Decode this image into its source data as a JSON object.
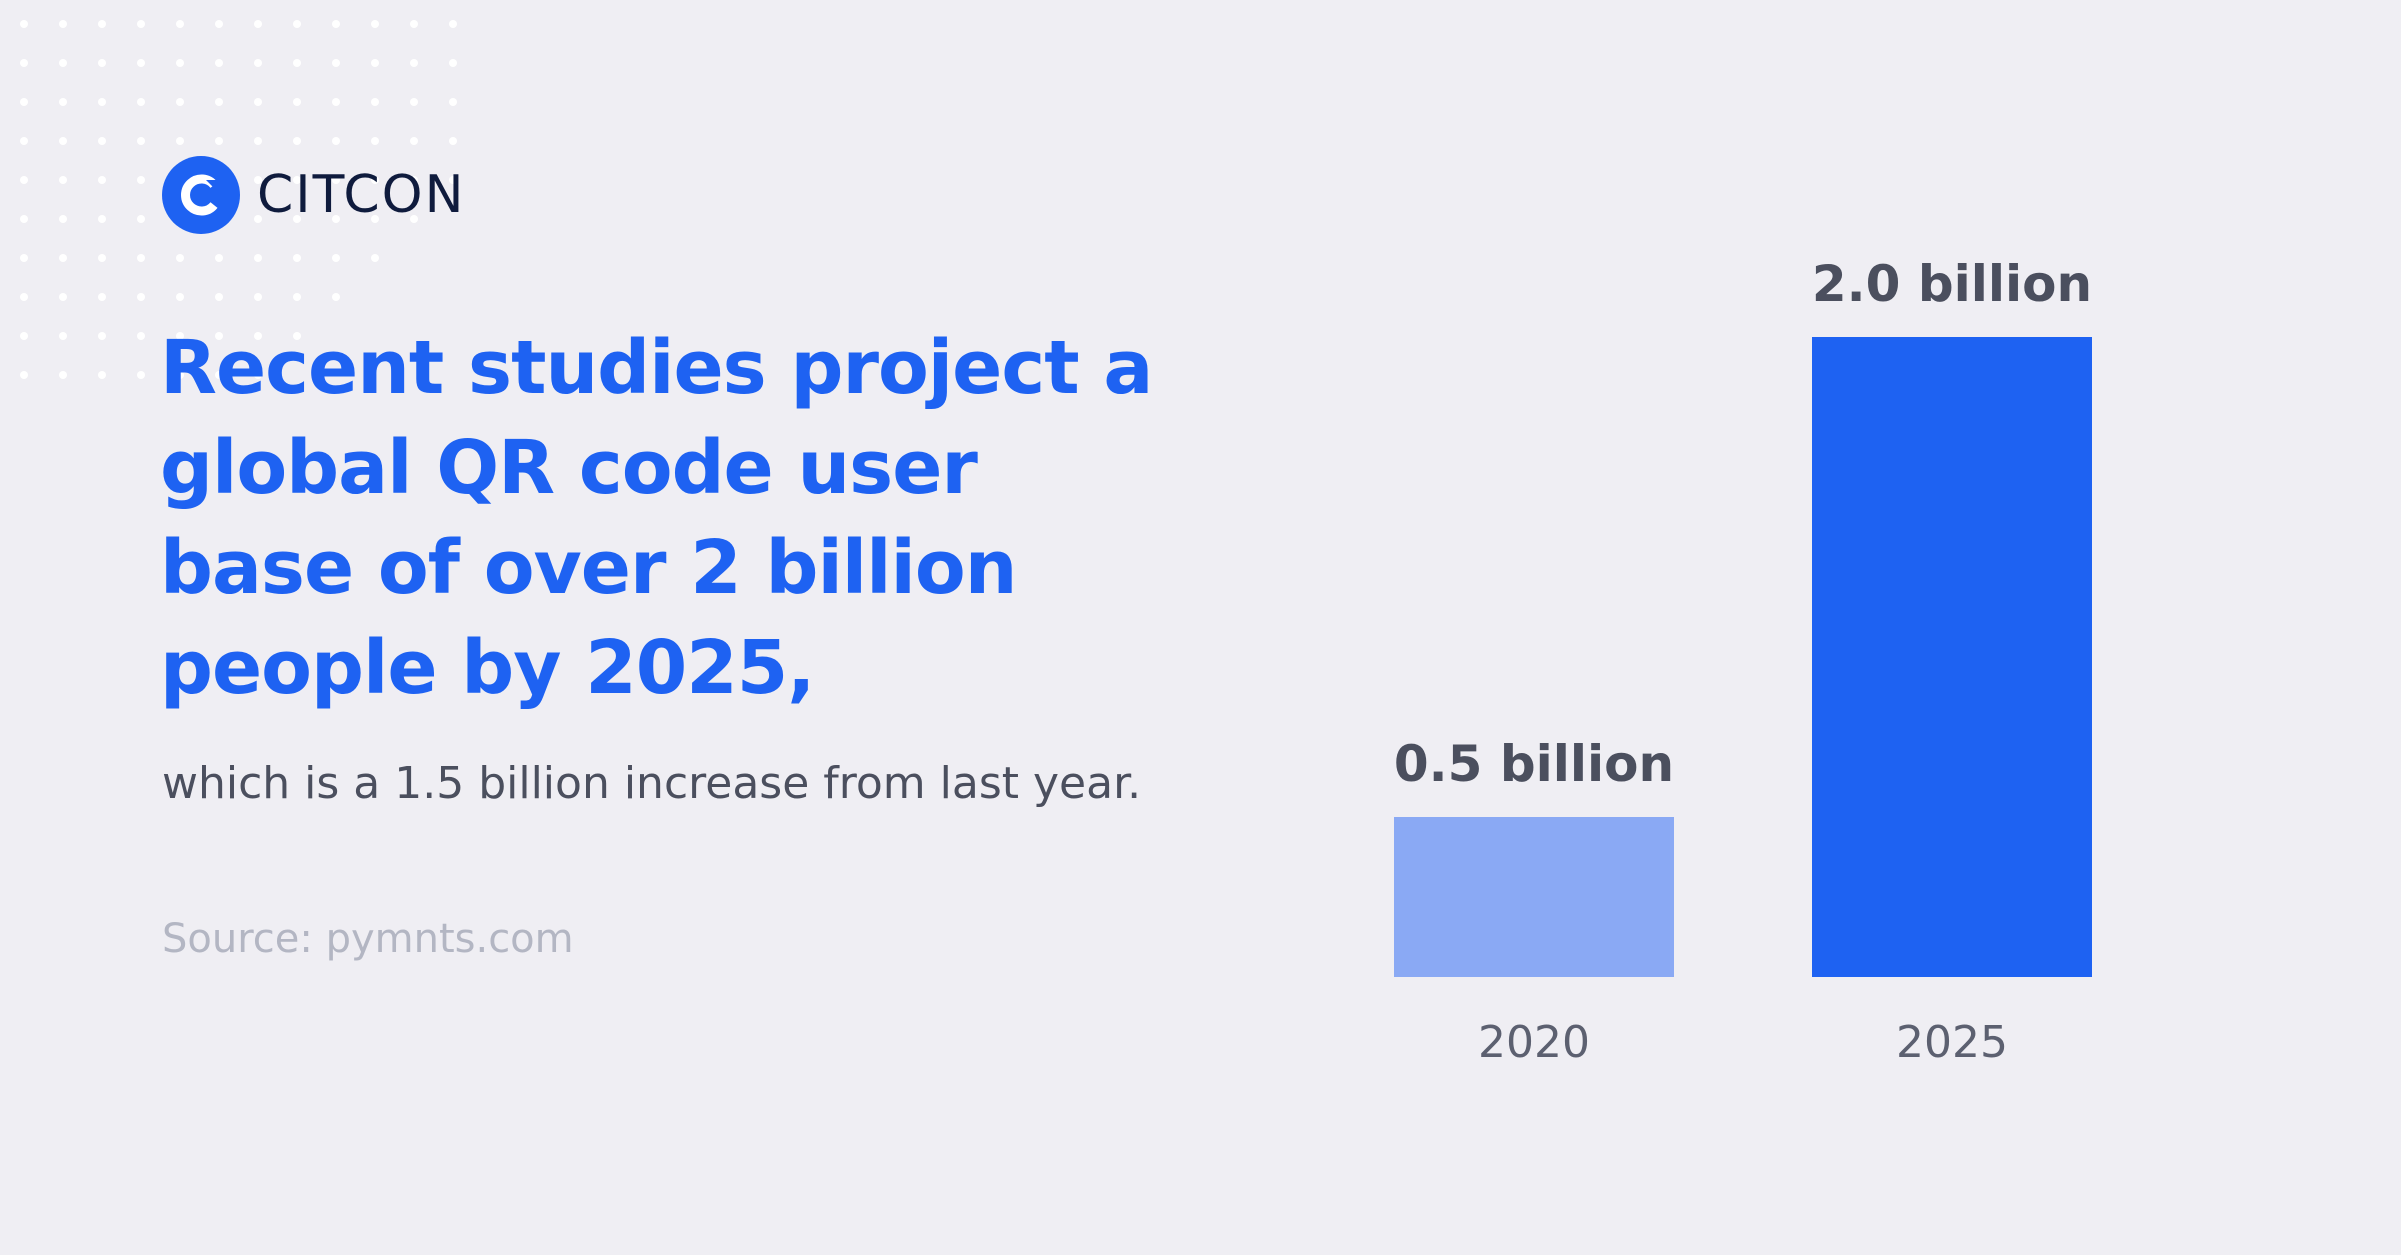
{
  "brand": {
    "name": "CITCON",
    "mark_letter": "C",
    "mark_color": "#1e62f2"
  },
  "headline": "Recent studies project a global QR code user base of over 2 billion people by 2025,",
  "subtext": "which is a 1.5 billion increase from last year.",
  "source": "Source: pymnts.com",
  "colors": {
    "background": "#efeef3",
    "accent": "#1e62f2",
    "accent_light": "#8aa9f4",
    "value_text": "#4b4f5e",
    "tick_text": "#5c6070"
  },
  "chart_data": {
    "type": "bar",
    "categories": [
      "2020",
      "2025"
    ],
    "values": [
      0.5,
      2.0
    ],
    "data_labels": [
      "0.5 billion",
      "2.0 billion"
    ],
    "bar_colors": [
      "#8aa9f4",
      "#1e62f2"
    ],
    "title": "",
    "xlabel": "",
    "ylabel": "",
    "ylim": [
      0,
      2.0
    ],
    "grid": false,
    "legend": "none"
  }
}
